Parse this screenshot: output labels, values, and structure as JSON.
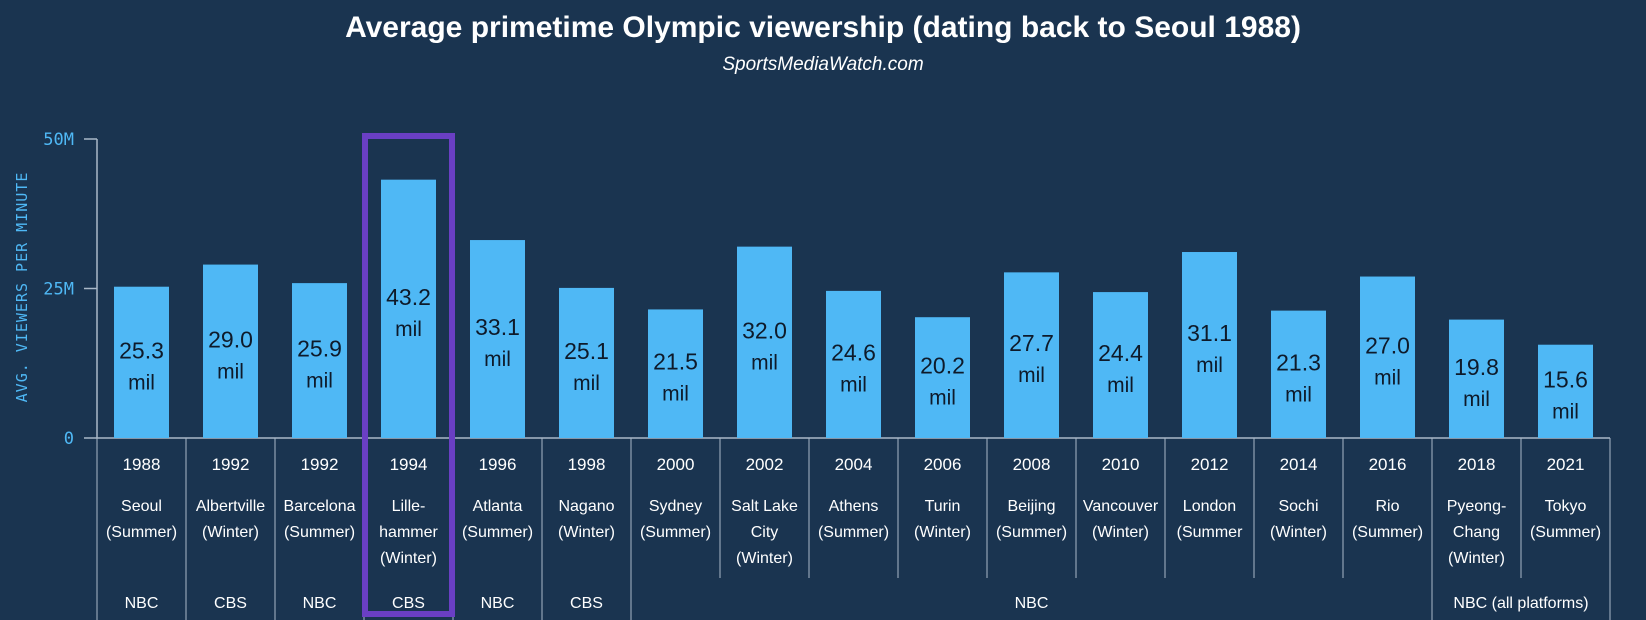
{
  "chart_data": {
    "type": "bar",
    "title": "Average primetime Olympic viewership (dating back to Seoul 1988)",
    "subtitle": "SportsMediaWatch.com",
    "ylabel": "AVG. VIEWERS PER MINUTE",
    "xlabel": "",
    "ylim": [
      0,
      50
    ],
    "y_ticks": [
      {
        "value": 50,
        "label": "50M"
      },
      {
        "value": 25,
        "label": "25M"
      },
      {
        "value": 0,
        "label": "0"
      }
    ],
    "unit_label": "mil",
    "bars": [
      {
        "year": "1988",
        "city": [
          "Seoul",
          "(Summer)"
        ],
        "value": 25.3,
        "label": "25.3"
      },
      {
        "year": "1992",
        "city": [
          "Albertville",
          "(Winter)"
        ],
        "value": 29.0,
        "label": "29.0"
      },
      {
        "year": "1992",
        "city": [
          "Barcelona",
          "(Summer)"
        ],
        "value": 25.9,
        "label": "25.9"
      },
      {
        "year": "1994",
        "city": [
          "Lille-",
          "hammer",
          "(Winter)"
        ],
        "value": 43.2,
        "label": "43.2"
      },
      {
        "year": "1996",
        "city": [
          "Atlanta",
          "(Summer)"
        ],
        "value": 33.1,
        "label": "33.1"
      },
      {
        "year": "1998",
        "city": [
          "Nagano",
          "(Winter)"
        ],
        "value": 25.1,
        "label": "25.1"
      },
      {
        "year": "2000",
        "city": [
          "Sydney",
          "(Summer)"
        ],
        "value": 21.5,
        "label": "21.5"
      },
      {
        "year": "2002",
        "city": [
          "Salt Lake",
          "City",
          "(Winter)"
        ],
        "value": 32.0,
        "label": "32.0"
      },
      {
        "year": "2004",
        "city": [
          "Athens",
          "(Summer)"
        ],
        "value": 24.6,
        "label": "24.6"
      },
      {
        "year": "2006",
        "city": [
          "Turin",
          "(Winter)"
        ],
        "value": 20.2,
        "label": "20.2"
      },
      {
        "year": "2008",
        "city": [
          "Beijing",
          "(Summer)"
        ],
        "value": 27.7,
        "label": "27.7"
      },
      {
        "year": "2010",
        "city": [
          "Vancouver",
          "(Winter)"
        ],
        "value": 24.4,
        "label": "24.4"
      },
      {
        "year": "2012",
        "city": [
          "London",
          "(Summer"
        ],
        "value": 31.1,
        "label": "31.1"
      },
      {
        "year": "2014",
        "city": [
          "Sochi",
          "(Winter)"
        ],
        "value": 21.3,
        "label": "21.3"
      },
      {
        "year": "2016",
        "city": [
          "Rio",
          "(Summer)"
        ],
        "value": 27.0,
        "label": "27.0"
      },
      {
        "year": "2018",
        "city": [
          "Pyeong-",
          "Chang",
          "(Winter)"
        ],
        "value": 19.8,
        "label": "19.8"
      },
      {
        "year": "2021",
        "city": [
          "Tokyo",
          "(Summer)"
        ],
        "value": 15.6,
        "label": "15.6"
      }
    ],
    "networks": [
      {
        "label": "NBC",
        "start": 0,
        "end": 0
      },
      {
        "label": "CBS",
        "start": 1,
        "end": 1
      },
      {
        "label": "NBC",
        "start": 2,
        "end": 2
      },
      {
        "label": "CBS",
        "start": 3,
        "end": 3
      },
      {
        "label": "NBC",
        "start": 4,
        "end": 4
      },
      {
        "label": "CBS",
        "start": 5,
        "end": 5
      },
      {
        "label": "NBC",
        "start": 6,
        "end": 14
      },
      {
        "label": "NBC (all platforms)",
        "start": 15,
        "end": 16
      }
    ],
    "highlight_index": 3
  },
  "colors": {
    "background": "#1a3450",
    "bar": "#4fb8f5",
    "axis_text": "#4fb8f5",
    "highlight": "#6a3fc4",
    "grid_line": "#a9b8c8"
  }
}
